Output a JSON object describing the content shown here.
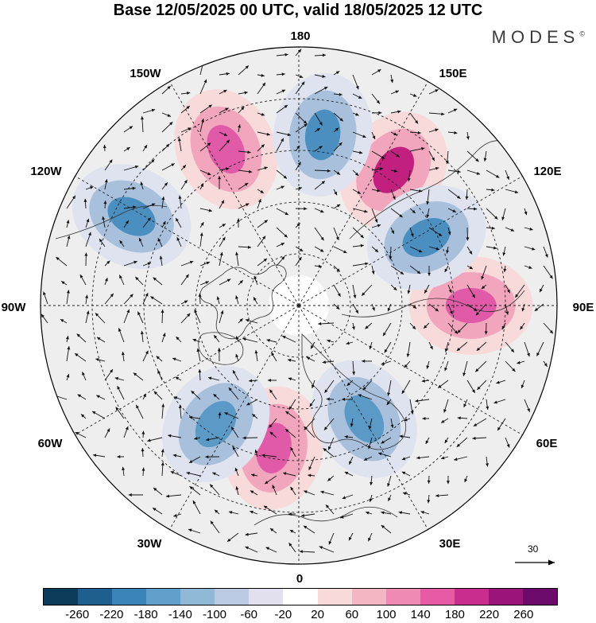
{
  "header": {
    "title": "Base 12/05/2025 00 UTC, valid 18/05/2025 12 UTC",
    "brand": "MODES",
    "brand_mark": "©"
  },
  "map": {
    "projection": "north polar stereographic",
    "meridian_labels": [
      {
        "id": "180",
        "text": "180"
      },
      {
        "id": "150e",
        "text": "150E"
      },
      {
        "id": "120e",
        "text": "120E"
      },
      {
        "id": "90e",
        "text": "90E"
      },
      {
        "id": "60e",
        "text": "60E"
      },
      {
        "id": "30e",
        "text": "30E"
      },
      {
        "id": "0",
        "text": "0"
      },
      {
        "id": "30w",
        "text": "30W"
      },
      {
        "id": "60w",
        "text": "60W"
      },
      {
        "id": "90w",
        "text": "90W"
      },
      {
        "id": "120w",
        "text": "120W"
      },
      {
        "id": "150w",
        "text": "150W"
      }
    ],
    "wind_reference_label": "30",
    "anomaly_centers": [
      {
        "name": "positive-center",
        "sign": "+",
        "color": "#c2207f",
        "lon": 145,
        "lat": 42
      },
      {
        "name": "positive-center",
        "sign": "+",
        "color": "#e05aa8",
        "lon": -155,
        "lat": 40
      },
      {
        "name": "positive-center",
        "sign": "+",
        "color": "#e05aa8",
        "lon": 90,
        "lat": 40
      },
      {
        "name": "positive-center",
        "sign": "+",
        "color": "#e05aa8",
        "lon": -10,
        "lat": 48
      },
      {
        "name": "negative-center",
        "sign": "-",
        "color": "#4a8fc0",
        "lon": 172,
        "lat": 40
      },
      {
        "name": "negative-center",
        "sign": "-",
        "color": "#4a8fc0",
        "lon": -118,
        "lat": 35
      },
      {
        "name": "negative-center",
        "sign": "-",
        "color": "#4a8fc0",
        "lon": 118,
        "lat": 48
      },
      {
        "name": "negative-center",
        "sign": "-",
        "color": "#5b9ac7",
        "lon": -35,
        "lat": 48
      },
      {
        "name": "negative-center",
        "sign": "-",
        "color": "#5b9ac7",
        "lon": 30,
        "lat": 52
      }
    ]
  },
  "colorbar": {
    "colors": [
      "#0d3b5c",
      "#1f5f8f",
      "#3b84b8",
      "#62a0cc",
      "#90b9d8",
      "#bcc9e2",
      "#e2e0ee",
      "#ffffff",
      "#f8dada",
      "#f5b6c4",
      "#ef8ab5",
      "#e65aa6",
      "#c92e8e",
      "#9b1478",
      "#6b0a68"
    ],
    "labels": [
      "-260",
      "-220",
      "-180",
      "-140",
      "-100",
      "-60",
      "-20",
      "20",
      "60",
      "100",
      "140",
      "180",
      "220",
      "260"
    ]
  }
}
